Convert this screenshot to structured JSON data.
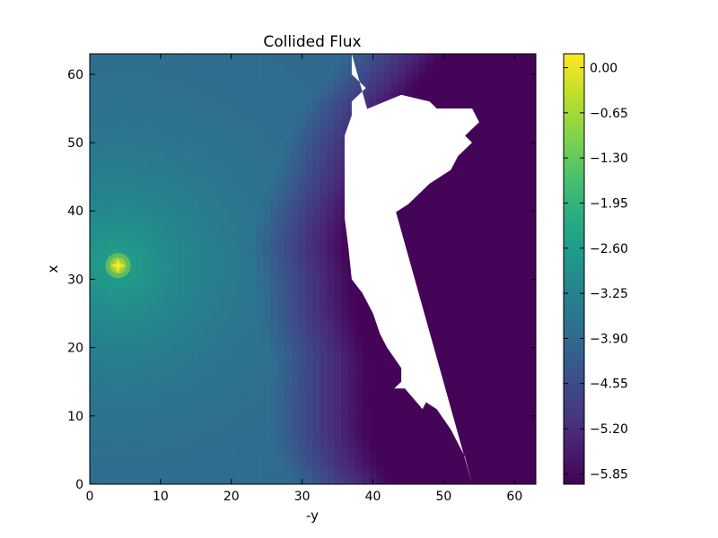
{
  "chart_data": {
    "type": "heatmap",
    "title": "Collided Flux",
    "xlabel": "-y",
    "ylabel": "x",
    "xlim": [
      0,
      63
    ],
    "ylim": [
      0,
      63
    ],
    "x_ticks": [
      0,
      10,
      20,
      30,
      40,
      50,
      60
    ],
    "y_ticks": [
      0,
      10,
      20,
      30,
      40,
      50,
      60
    ],
    "colormap": "viridis",
    "value_range": [
      -6.0,
      0.2
    ],
    "colorbar_ticks": [
      "0.00",
      "−0.65",
      "−1.30",
      "−1.95",
      "−2.60",
      "−3.25",
      "−3.90",
      "−4.55",
      "−5.20",
      "−5.85"
    ],
    "colorbar_tick_values": [
      0.0,
      -0.65,
      -1.3,
      -1.95,
      -2.6,
      -3.25,
      -3.9,
      -4.55,
      -5.2,
      -5.85
    ],
    "source_point": {
      "x": 4,
      "y": 32,
      "peak_value": 0.15
    },
    "field_model": {
      "near_value": -2.4,
      "far_value": -3.95,
      "decay_length": 14
    },
    "shadow_front": {
      "y": [
        0,
        3,
        6,
        8,
        11,
        14,
        17,
        19,
        22,
        25,
        28,
        30,
        32,
        34,
        36,
        38,
        41,
        44,
        47,
        50,
        53,
        56,
        59,
        63
      ],
      "x": [
        36,
        34,
        32.8,
        32.4,
        32.3,
        32.3,
        32.3,
        32.3,
        31.3,
        30.5,
        30.3,
        30.2,
        29.8,
        29.4,
        29.5,
        30,
        31,
        32.5,
        33.5,
        34.5,
        36,
        37.5,
        40,
        43
      ]
    },
    "shadow_min_value": -5.95,
    "blank_region": {
      "y": [
        0,
        4,
        8,
        11,
        12,
        11,
        14,
        14,
        15,
        17,
        20,
        22,
        25,
        28,
        30,
        35,
        39,
        42,
        45,
        48,
        51,
        54,
        57,
        56,
        55,
        55,
        53,
        51,
        50,
        48,
        46,
        44,
        41,
        39,
        38,
        36,
        36,
        37,
        39,
        40,
        41,
        44,
        45,
        46,
        47,
        48,
        49,
        51,
        52,
        54,
        56,
        58,
        60,
        63
      ],
      "x": [
        54,
        53,
        51,
        49,
        47.5,
        47,
        44.5,
        43,
        44,
        44,
        42,
        41,
        40,
        38.5,
        37,
        36.5,
        36,
        36,
        36,
        36,
        36,
        37,
        44,
        48,
        49,
        54,
        55,
        53,
        54,
        52,
        51,
        48,
        45,
        42,
        40,
        38.5,
        37,
        37,
        42,
        42.5,
        41.5,
        39,
        39,
        40,
        39.5,
        38,
        37,
        36,
        38,
        37,
        37,
        39,
        37,
        37
      ]
    }
  }
}
